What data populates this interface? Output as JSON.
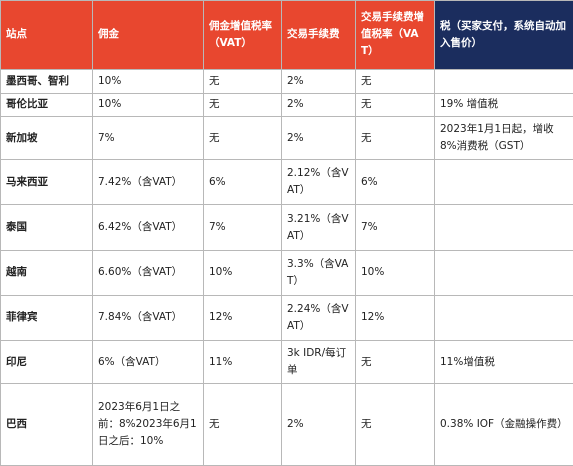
{
  "headers": {
    "site": "站点",
    "commission": "佣金",
    "commission_vat": "佣金增值税率（VAT）",
    "txn_fee": "交易手续费",
    "txn_fee_vat": "交易手续费增值税率（VAT）",
    "tax": "税（买家支付，系统自动加入售价）"
  },
  "colors": {
    "header_orange": "#e8472f",
    "header_navy": "#1b2d5e",
    "border": "#b8b8b8"
  },
  "rows": [
    {
      "site": "墨西哥、智利",
      "commission": "10%",
      "commission_vat": "无",
      "txn_fee": "2%",
      "txn_fee_vat": "无",
      "tax": ""
    },
    {
      "site": "哥伦比亚",
      "commission": "10%",
      "commission_vat": "无",
      "txn_fee": "2%",
      "txn_fee_vat": "无",
      "tax": "19% 增值税"
    },
    {
      "site": "新加坡",
      "commission": "7%",
      "commission_vat": "无",
      "txn_fee": "2%",
      "txn_fee_vat": "无",
      "tax": "2023年1月1日起，增收8%消费税（GST）"
    },
    {
      "site": "马来西亚",
      "commission": "7.42%（含VAT）",
      "commission_vat": "6%",
      "txn_fee": "2.12%（含VAT）",
      "txn_fee_vat": "6%",
      "tax": ""
    },
    {
      "site": "泰国",
      "commission": "6.42%（含VAT）",
      "commission_vat": "7%",
      "txn_fee": "3.21%（含VAT）",
      "txn_fee_vat": "7%",
      "tax": ""
    },
    {
      "site": "越南",
      "commission": "6.60%（含VAT）",
      "commission_vat": "10%",
      "txn_fee": "3.3%（含VAT）",
      "txn_fee_vat": "10%",
      "tax": ""
    },
    {
      "site": "菲律宾",
      "commission": "7.84%（含VAT）",
      "commission_vat": "12%",
      "txn_fee": "2.24%（含VAT）",
      "txn_fee_vat": "12%",
      "tax": ""
    },
    {
      "site": "印尼",
      "commission": "6%（含VAT）",
      "commission_vat": "11%",
      "txn_fee": "3k IDR/每订单",
      "txn_fee_vat": "无",
      "tax": "11%增值税"
    },
    {
      "site": "巴西",
      "commission": "2023年6月1日之前：8%2023年6月1日之后：10%",
      "commission_vat": "无",
      "txn_fee": "2%",
      "txn_fee_vat": "无",
      "tax": "0.38% IOF（金融操作费）"
    }
  ]
}
